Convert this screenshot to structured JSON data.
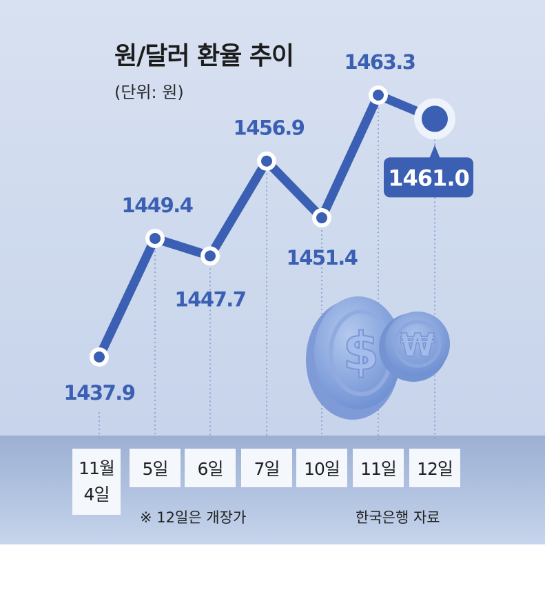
{
  "header": {
    "title": "원/달러 환율 추이",
    "unit": "(단위: 원)"
  },
  "chart_data": {
    "type": "line",
    "title": "원/달러 환율 추이",
    "unit": "(단위: 원)",
    "categories": [
      "11월 4일",
      "5일",
      "6일",
      "7일",
      "10일",
      "11일",
      "12일"
    ],
    "values": [
      1437.9,
      1449.4,
      1447.7,
      1456.9,
      1451.4,
      1463.3,
      1461.0
    ],
    "value_labels": [
      "1437.9",
      "1449.4",
      "1447.7",
      "1456.9",
      "1451.4",
      "1463.3",
      "1461.0"
    ],
    "ylim": [
      1437.9,
      1463.3
    ],
    "grid": false,
    "line_color": "#3a5fb3",
    "highlight_color": "#3a5fb3"
  },
  "xaxis": {
    "labels": [
      "11월\n4일",
      "5일",
      "6일",
      "7일",
      "10일",
      "11일",
      "12일"
    ]
  },
  "footer": {
    "note": "※ 12일은 개장가",
    "source": "한국은행 자료"
  }
}
